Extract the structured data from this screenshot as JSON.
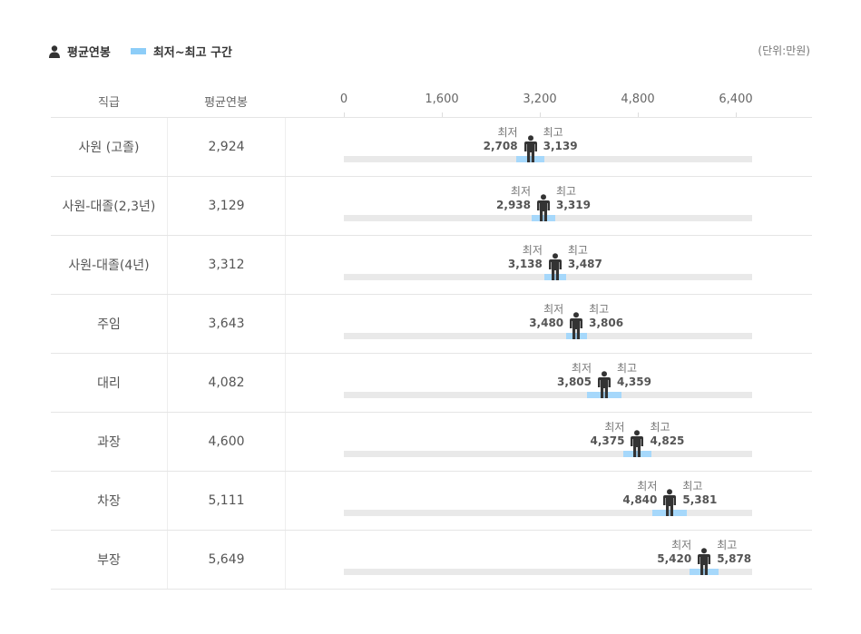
{
  "legend": {
    "avg_label": "평균연봉",
    "range_label": "최저~최고 구간",
    "avg_icon": "person-icon",
    "range_color": "#8dcdf8"
  },
  "unit": "(단위:만원)",
  "columns": {
    "rank": "직급",
    "avg": "평균연봉"
  },
  "min_label": "최저",
  "max_label": "최고",
  "chart_data": {
    "type": "range-bar",
    "xlim": [
      0,
      6400
    ],
    "ticks": [
      "0",
      "1,600",
      "3,200",
      "4,800",
      "6,400"
    ],
    "tick_values": [
      0,
      1600,
      3200,
      4800,
      6400
    ],
    "colors": {
      "range": "#a6d8fb",
      "track": "#e9e9e9",
      "figure": "#333333"
    },
    "rows": [
      {
        "rank": "사원 (고졸)",
        "avg": "2,924",
        "avg_value": 2924,
        "min": "2,708",
        "min_value": 2708,
        "max": "3,139",
        "max_value": 3139
      },
      {
        "rank": "사원-대졸(2,3년)",
        "avg": "3,129",
        "avg_value": 3129,
        "min": "2,938",
        "min_value": 2938,
        "max": "3,319",
        "max_value": 3319
      },
      {
        "rank": "사원-대졸(4년)",
        "avg": "3,312",
        "avg_value": 3312,
        "min": "3,138",
        "min_value": 3138,
        "max": "3,487",
        "max_value": 3487
      },
      {
        "rank": "주임",
        "avg": "3,643",
        "avg_value": 3643,
        "min": "3,480",
        "min_value": 3480,
        "max": "3,806",
        "max_value": 3806
      },
      {
        "rank": "대리",
        "avg": "4,082",
        "avg_value": 4082,
        "min": "3,805",
        "min_value": 3805,
        "max": "4,359",
        "max_value": 4359
      },
      {
        "rank": "과장",
        "avg": "4,600",
        "avg_value": 4600,
        "min": "4,375",
        "min_value": 4375,
        "max": "4,825",
        "max_value": 4825
      },
      {
        "rank": "차장",
        "avg": "5,111",
        "avg_value": 5111,
        "min": "4,840",
        "min_value": 4840,
        "max": "5,381",
        "max_value": 5381
      },
      {
        "rank": "부장",
        "avg": "5,649",
        "avg_value": 5649,
        "min": "5,420",
        "min_value": 5420,
        "max": "5,878",
        "max_value": 5878
      }
    ]
  }
}
